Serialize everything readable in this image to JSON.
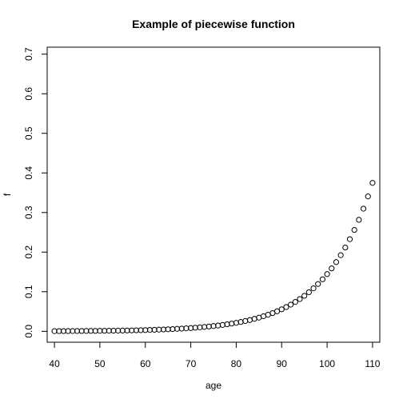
{
  "chart_data": {
    "type": "scatter",
    "title": "Example of piecewise function",
    "xlabel": "age",
    "ylabel": "f",
    "xlim": [
      38.4,
      111.6
    ],
    "ylim": [
      -0.0276,
      0.7176
    ],
    "xticks": [
      40,
      50,
      60,
      70,
      80,
      90,
      100,
      110
    ],
    "yticks": [
      0.0,
      0.1,
      0.2,
      0.3,
      0.4,
      0.5,
      0.6,
      0.7
    ],
    "ytick_labels": [
      "0.0",
      "0.1",
      "0.2",
      "0.3",
      "0.4",
      "0.5",
      "0.6",
      "0.7"
    ],
    "grid": false,
    "marker": "open-circle",
    "series": [
      {
        "x": [
          40,
          41,
          42,
          43,
          44,
          45,
          46,
          47,
          48,
          49,
          50,
          51,
          52,
          53,
          54,
          55,
          56,
          57,
          58,
          59,
          60,
          61,
          62,
          63,
          64,
          65,
          66,
          67,
          68,
          69,
          70,
          71,
          72,
          73,
          74,
          75,
          76,
          77,
          78,
          79,
          80,
          81,
          82,
          83,
          84,
          85,
          86,
          87,
          88,
          89,
          90,
          91,
          92,
          93,
          94,
          95,
          96,
          97,
          98,
          99,
          100,
          101,
          102,
          103,
          104,
          105,
          106,
          107,
          108,
          109,
          110
        ],
        "y": [
          0.0004,
          0.0005,
          0.0005,
          0.0006,
          0.0007,
          0.0007,
          0.0008,
          0.0009,
          0.001,
          0.0011,
          0.0012,
          0.0013,
          0.0014,
          0.0016,
          0.0017,
          0.0019,
          0.0021,
          0.0023,
          0.0026,
          0.0028,
          0.0031,
          0.0035,
          0.0038,
          0.0042,
          0.0046,
          0.0051,
          0.0056,
          0.0062,
          0.0068,
          0.0075,
          0.0082,
          0.0091,
          0.01,
          0.011,
          0.0121,
          0.0133,
          0.0146,
          0.0161,
          0.0177,
          0.0195,
          0.0214,
          0.0236,
          0.0259,
          0.0285,
          0.0314,
          0.0345,
          0.038,
          0.0418,
          0.046,
          0.0506,
          0.0556,
          0.0612,
          0.0673,
          0.0741,
          0.0815,
          0.0897,
          0.0987,
          0.1085,
          0.1194,
          0.1313,
          0.1445,
          0.1589,
          0.1748,
          0.1923,
          0.2116,
          0.2327,
          0.256,
          0.2816,
          0.3097,
          0.3407,
          0.3748
        ]
      }
    ]
  }
}
